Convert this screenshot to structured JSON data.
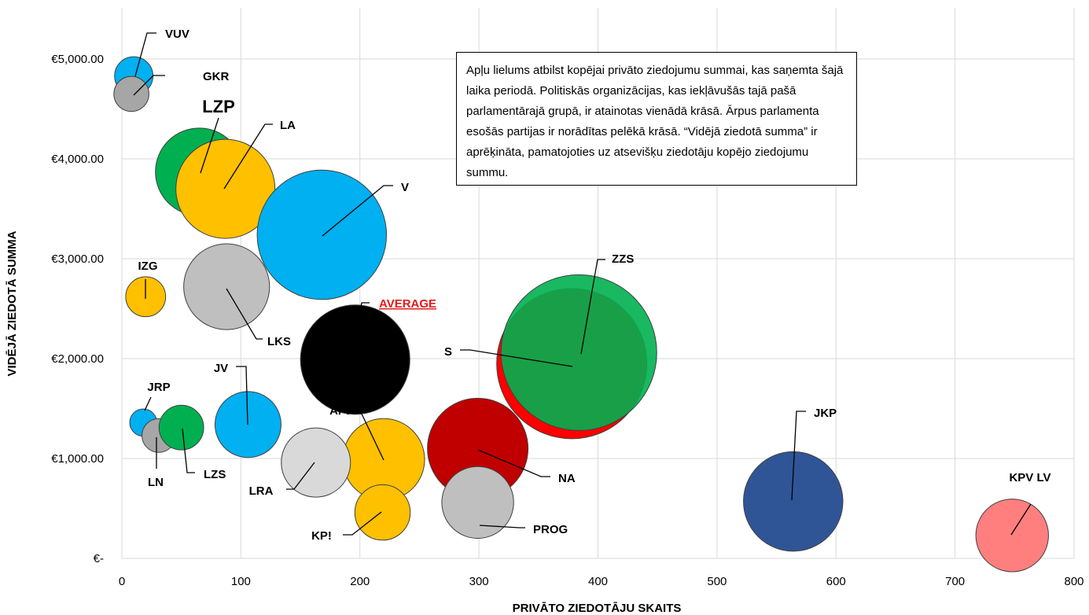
{
  "chart_data": {
    "type": "bubble",
    "xlabel": "PRIVĀTO ZIEDOTĀJU SKAITS",
    "ylabel": "VIDĒJĀ ZIEDOTĀ SUMMA",
    "xlim": [
      0,
      800
    ],
    "ylim": [
      0,
      5000
    ],
    "x_ticks": [
      0,
      100,
      200,
      300,
      400,
      500,
      600,
      700,
      800
    ],
    "x_tick_labels": [
      "0",
      "100",
      "200",
      "300",
      "400",
      "500",
      "600",
      "700",
      "800"
    ],
    "y_ticks": [
      0,
      1000,
      2000,
      3000,
      4000,
      5000
    ],
    "y_tick_labels": [
      "€-",
      "€1,000.00",
      "€2,000.00",
      "€3,000.00",
      "€4,000.00",
      "€5,000.00"
    ],
    "grid": true,
    "note": "Apļu lielums atbilst kopējai privāto ziedojumu summai, kas saņemta šajā laika periodā. Politiskās organizācijas, kas iekļāvušās tajā pašā parlamentārajā grupā, ir atainotas vienādā krāsā. Ārpus parlamenta esošās partijas ir norādītas pelēkā krāsā. “Vidējā ziedotā summa” ir aprēķināta, pamatojoties uz atsevišķu ziedotāju kopējo ziedojumu summu.",
    "series": [
      {
        "name": "VUV",
        "x": 10,
        "y": 4830,
        "size": 48000,
        "color": "#00B0F0"
      },
      {
        "name": "GKR",
        "x": 8,
        "y": 4650,
        "size": 40000,
        "color": "#A6A6A6"
      },
      {
        "name": "LZP",
        "x": 65,
        "y": 3870,
        "size": 250000,
        "color": "#00B050"
      },
      {
        "name": "LA",
        "x": 87,
        "y": 3700,
        "size": 320000,
        "color": "#FFC000"
      },
      {
        "name": "V",
        "x": 168,
        "y": 3240,
        "size": 545000,
        "color": "#00B0F0"
      },
      {
        "name": "IZG",
        "x": 20,
        "y": 2620,
        "size": 52000,
        "color": "#FFC000"
      },
      {
        "name": "LKS",
        "x": 88,
        "y": 2720,
        "size": 240000,
        "color": "#BFBFBF"
      },
      {
        "name": "AVERAGE",
        "x": 196,
        "y": 1990,
        "size": 390000,
        "color": "#000000"
      },
      {
        "name": "S",
        "x": 378,
        "y": 1950,
        "size": 735000,
        "color": "#FF0000"
      },
      {
        "name": "ZZS",
        "x": 384,
        "y": 2060,
        "size": 790000,
        "color": "#00B050"
      },
      {
        "name": "JV",
        "x": 106,
        "y": 1340,
        "size": 142000,
        "color": "#00B0F0"
      },
      {
        "name": "JRP",
        "x": 18,
        "y": 1360,
        "size": 24000,
        "color": "#00B0F0"
      },
      {
        "name": "LN",
        "x": 31,
        "y": 1230,
        "size": 37000,
        "color": "#A6A6A6"
      },
      {
        "name": "LZS",
        "x": 50,
        "y": 1310,
        "size": 65000,
        "color": "#00B050"
      },
      {
        "name": "AP!",
        "x": 220,
        "y": 990,
        "size": 218000,
        "color": "#FFC000"
      },
      {
        "name": "LRA",
        "x": 163,
        "y": 960,
        "size": 156000,
        "color": "#D9D9D9"
      },
      {
        "name": "NA",
        "x": 299,
        "y": 1100,
        "size": 330000,
        "color": "#C00000"
      },
      {
        "name": "KP!",
        "x": 219,
        "y": 460,
        "size": 100000,
        "color": "#FFC000"
      },
      {
        "name": "PROG",
        "x": 299,
        "y": 560,
        "size": 168000,
        "color": "#BFBFBF"
      },
      {
        "name": "JKP",
        "x": 564,
        "y": 570,
        "size": 322000,
        "color": "#2F5597"
      },
      {
        "name": "KPV LV",
        "x": 748,
        "y": 230,
        "size": 172000,
        "color": "#FF7F7F"
      }
    ]
  }
}
